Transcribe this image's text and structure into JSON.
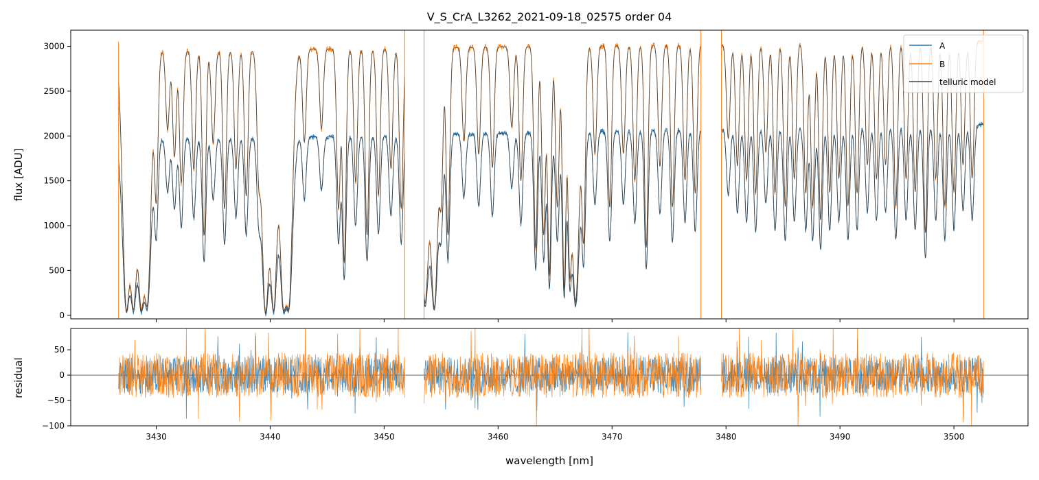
{
  "chart_data": [
    {
      "panel": "flux",
      "type": "line",
      "title": "V_S_CrA_L3262_2021-09-18_02575  order 04",
      "xlabel": "",
      "ylabel": "flux [ADU]",
      "xlim": [
        3422.5,
        3506.5
      ],
      "ylim": [
        -40,
        3180
      ],
      "yticks": [
        0,
        500,
        1000,
        1500,
        2000,
        2500,
        3000
      ],
      "xticks": [
        3430,
        3440,
        3450,
        3460,
        3470,
        3480,
        3490,
        3500
      ],
      "show_xtick_labels": false,
      "legend_position": "top-right",
      "series": [
        {
          "name": "A",
          "color": "#1f77b4",
          "continuum": 1950,
          "continuum_end": 2130
        },
        {
          "name": "B",
          "color": "#ff7f0e",
          "continuum": 2940,
          "continuum_end": 3060
        },
        {
          "name": "telluric model",
          "color": "#444444"
        }
      ],
      "segments": [
        [
          3426.7,
          3451.8
        ],
        [
          3453.5,
          3477.8
        ],
        [
          3479.6,
          3502.6
        ]
      ],
      "absorption_lines": [
        [
          3427.4,
          0.98
        ],
        [
          3428.0,
          0.97
        ],
        [
          3428.7,
          0.97
        ],
        [
          3429.2,
          0.95
        ],
        [
          3430.0,
          0.55
        ],
        [
          3431.0,
          0.3
        ],
        [
          3431.6,
          0.4
        ],
        [
          3432.2,
          0.5
        ],
        [
          3433.3,
          0.45
        ],
        [
          3434.2,
          0.7
        ],
        [
          3435.0,
          0.35
        ],
        [
          3436.0,
          0.6
        ],
        [
          3437.0,
          0.45
        ],
        [
          3437.9,
          0.55
        ],
        [
          3439.0,
          0.4
        ],
        [
          3439.6,
          0.99
        ],
        [
          3440.3,
          0.98
        ],
        [
          3441.2,
          0.97
        ],
        [
          3441.6,
          0.96
        ],
        [
          3443.0,
          0.35
        ],
        [
          3444.5,
          0.3
        ],
        [
          3446.0,
          0.6
        ],
        [
          3446.5,
          0.8
        ],
        [
          3447.5,
          0.5
        ],
        [
          3448.5,
          0.7
        ],
        [
          3449.5,
          0.55
        ],
        [
          3450.6,
          0.45
        ],
        [
          3451.5,
          0.6
        ],
        [
          3453.6,
          0.95
        ],
        [
          3454.4,
          0.97
        ],
        [
          3455.0,
          0.5
        ],
        [
          3455.6,
          0.7
        ],
        [
          3457.0,
          0.35
        ],
        [
          3458.3,
          0.4
        ],
        [
          3459.5,
          0.45
        ],
        [
          3461.2,
          0.3
        ],
        [
          3462.0,
          0.5
        ],
        [
          3463.3,
          0.75
        ],
        [
          3464.0,
          0.7
        ],
        [
          3464.5,
          0.85
        ],
        [
          3465.2,
          0.6
        ],
        [
          3465.8,
          0.9
        ],
        [
          3466.3,
          0.8
        ],
        [
          3466.8,
          0.95
        ],
        [
          3467.5,
          0.7
        ],
        [
          3468.5,
          0.4
        ],
        [
          3469.8,
          0.6
        ],
        [
          3471.0,
          0.4
        ],
        [
          3472.0,
          0.5
        ],
        [
          3473.0,
          0.75
        ],
        [
          3474.2,
          0.45
        ],
        [
          3475.3,
          0.6
        ],
        [
          3476.4,
          0.5
        ],
        [
          3477.3,
          0.55
        ],
        [
          3480.2,
          0.35
        ],
        [
          3481.0,
          0.45
        ],
        [
          3481.8,
          0.5
        ],
        [
          3482.6,
          0.55
        ],
        [
          3483.5,
          0.4
        ],
        [
          3484.3,
          0.55
        ],
        [
          3485.2,
          0.6
        ],
        [
          3486.0,
          0.5
        ],
        [
          3487.0,
          0.55
        ],
        [
          3487.6,
          0.6
        ],
        [
          3488.3,
          0.65
        ],
        [
          3489.1,
          0.55
        ],
        [
          3489.9,
          0.5
        ],
        [
          3490.7,
          0.6
        ],
        [
          3491.5,
          0.55
        ],
        [
          3492.4,
          0.45
        ],
        [
          3493.2,
          0.5
        ],
        [
          3494.0,
          0.45
        ],
        [
          3494.9,
          0.6
        ],
        [
          3495.8,
          0.5
        ],
        [
          3496.6,
          0.55
        ],
        [
          3497.5,
          0.7
        ],
        [
          3498.4,
          0.5
        ],
        [
          3499.2,
          0.6
        ],
        [
          3500.0,
          0.55
        ],
        [
          3500.8,
          0.45
        ],
        [
          3501.6,
          0.5
        ]
      ]
    },
    {
      "panel": "residual",
      "type": "line",
      "xlabel": "wavelength [nm]",
      "ylabel": "residual",
      "xlim": [
        3422.5,
        3506.5
      ],
      "ylim": [
        -100,
        92
      ],
      "yticks": [
        -100,
        -50,
        0,
        50
      ],
      "xticks": [
        3430,
        3440,
        3450,
        3460,
        3470,
        3480,
        3490,
        3500
      ],
      "xtick_labels": [
        "3430",
        "3440",
        "3450",
        "3460",
        "3470",
        "3480",
        "3490",
        "3500"
      ],
      "zero_line": 0,
      "noise_amplitude": 45,
      "series": [
        {
          "name": "A",
          "color": "#1f77b4"
        },
        {
          "name": "B",
          "color": "#ff7f0e"
        }
      ]
    }
  ]
}
